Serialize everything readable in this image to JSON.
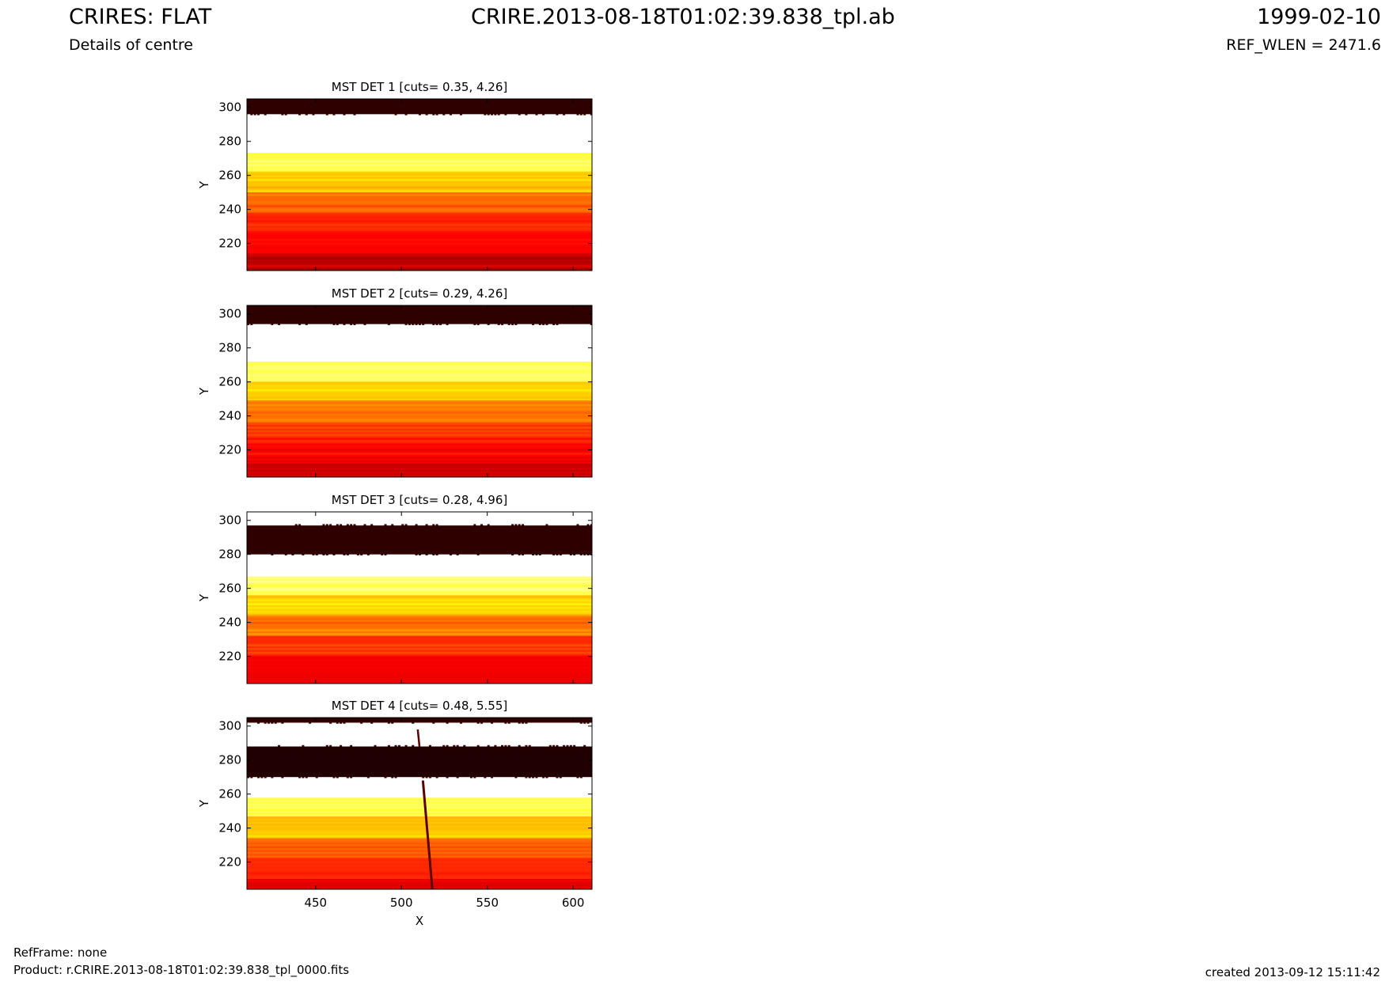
{
  "header": {
    "title": "CRIRES: FLAT",
    "subtitle": "Details of centre",
    "filename": "CRIRE.2013-08-18T01:02:39.838_tpl.ab",
    "date": "1999-02-10",
    "ref_wlen": "REF_WLEN = 2471.6"
  },
  "footer": {
    "refframe": "RefFrame: none",
    "product": "Product: r.CRIRE.2013-08-18T01:02:39.838_tpl_0000.fits",
    "created": "created 2013-09-12 15:11:42"
  },
  "chart_data": [
    {
      "type": "heatmap",
      "title": "MST DET 1 [cuts= 0.35, 4.26]",
      "xlabel": "",
      "ylabel": "Y",
      "xlim": [
        410,
        611
      ],
      "ylim": [
        204,
        305
      ],
      "yticks": [
        220,
        240,
        260,
        280,
        300
      ],
      "xticks": [],
      "colormap": "hot",
      "rows": [
        {
          "y0": 296,
          "y1": 305,
          "level": 0.05
        },
        {
          "y0": 273,
          "y1": 296,
          "level": 1.0
        },
        {
          "y0": 262,
          "y1": 273,
          "level": 0.82
        },
        {
          "y0": 250,
          "y1": 262,
          "level": 0.66
        },
        {
          "y0": 238,
          "y1": 250,
          "level": 0.52
        },
        {
          "y0": 227,
          "y1": 238,
          "level": 0.42
        },
        {
          "y0": 214,
          "y1": 227,
          "level": 0.36
        },
        {
          "y0": 204,
          "y1": 214,
          "level": 0.26
        }
      ]
    },
    {
      "type": "heatmap",
      "title": "MST DET 2 [cuts= 0.29, 4.26]",
      "xlabel": "",
      "ylabel": "Y",
      "xlim": [
        410,
        611
      ],
      "ylim": [
        204,
        305
      ],
      "yticks": [
        220,
        240,
        260,
        280,
        300
      ],
      "xticks": [],
      "colormap": "hot",
      "rows": [
        {
          "y0": 294,
          "y1": 305,
          "level": 0.05
        },
        {
          "y0": 272,
          "y1": 294,
          "level": 1.0
        },
        {
          "y0": 260,
          "y1": 272,
          "level": 0.84
        },
        {
          "y0": 248,
          "y1": 260,
          "level": 0.68
        },
        {
          "y0": 236,
          "y1": 248,
          "level": 0.54
        },
        {
          "y0": 224,
          "y1": 236,
          "level": 0.43
        },
        {
          "y0": 212,
          "y1": 224,
          "level": 0.36
        },
        {
          "y0": 204,
          "y1": 212,
          "level": 0.27
        }
      ]
    },
    {
      "type": "heatmap",
      "title": "MST DET 3 [cuts= 0.28, 4.96]",
      "xlabel": "",
      "ylabel": "Y",
      "xlim": [
        410,
        611
      ],
      "ylim": [
        204,
        305
      ],
      "yticks": [
        220,
        240,
        260,
        280,
        300
      ],
      "xticks": [],
      "colormap": "hot",
      "rows": [
        {
          "y0": 297,
          "y1": 305,
          "level": 1.0
        },
        {
          "y0": 280,
          "y1": 297,
          "level": 0.05
        },
        {
          "y0": 267,
          "y1": 280,
          "level": 1.0
        },
        {
          "y0": 256,
          "y1": 267,
          "level": 0.85
        },
        {
          "y0": 244,
          "y1": 256,
          "level": 0.68
        },
        {
          "y0": 232,
          "y1": 244,
          "level": 0.54
        },
        {
          "y0": 220,
          "y1": 232,
          "level": 0.43
        },
        {
          "y0": 204,
          "y1": 220,
          "level": 0.33
        }
      ]
    },
    {
      "type": "heatmap",
      "title": "MST DET 4 [cuts= 0.48, 5.55]",
      "xlabel": "X",
      "ylabel": "Y",
      "xlim": [
        410,
        611
      ],
      "ylim": [
        204,
        305
      ],
      "yticks": [
        220,
        240,
        260,
        280,
        300
      ],
      "xticks": [
        450,
        500,
        550,
        600
      ],
      "colormap": "hot",
      "rows": [
        {
          "y0": 302,
          "y1": 305,
          "level": 0.05
        },
        {
          "y0": 288,
          "y1": 302,
          "level": 1.0
        },
        {
          "y0": 270,
          "y1": 288,
          "level": 0.03
        },
        {
          "y0": 257,
          "y1": 270,
          "level": 1.0
        },
        {
          "y0": 246,
          "y1": 257,
          "level": 0.84
        },
        {
          "y0": 234,
          "y1": 246,
          "level": 0.66
        },
        {
          "y0": 222,
          "y1": 234,
          "level": 0.52
        },
        {
          "y0": 210,
          "y1": 222,
          "level": 0.42
        },
        {
          "y0": 204,
          "y1": 210,
          "level": 0.3
        }
      ]
    }
  ]
}
